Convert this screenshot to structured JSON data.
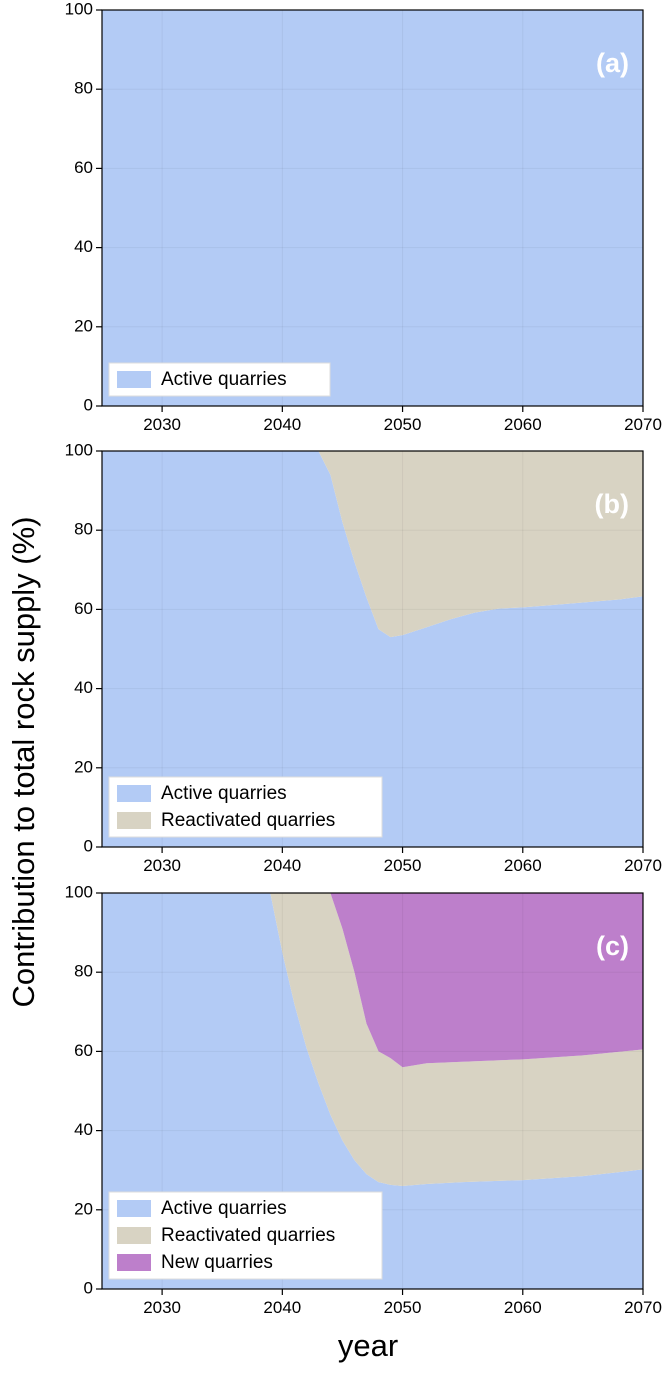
{
  "ylabel": "Contribution to total rock supply (%)",
  "xlabel": "year",
  "colors": {
    "active": "#b3cbf5",
    "reactivated": "#d8d3c3",
    "new": "#bd7fcb"
  },
  "chart_data": [
    {
      "type": "area",
      "panel_label": "(a)",
      "stacked": true,
      "xlim": [
        2025,
        2070
      ],
      "ylim": [
        0,
        100
      ],
      "xticks": [
        2030,
        2040,
        2050,
        2060,
        2070
      ],
      "yticks": [
        0,
        20,
        40,
        60,
        80,
        100
      ],
      "legend_position": "bottom-left",
      "series": [
        {
          "name": "Active quarries",
          "color": "#b3cbf5",
          "x": [
            2025,
            2070
          ],
          "values": [
            100,
            100
          ]
        }
      ]
    },
    {
      "type": "area",
      "panel_label": "(b)",
      "stacked": true,
      "xlim": [
        2025,
        2070
      ],
      "ylim": [
        0,
        100
      ],
      "xticks": [
        2030,
        2040,
        2050,
        2060,
        2070
      ],
      "yticks": [
        0,
        20,
        40,
        60,
        80,
        100
      ],
      "legend_position": "bottom-left",
      "series": [
        {
          "name": "Active quarries",
          "color": "#b3cbf5",
          "x": [
            2025,
            2043,
            2044,
            2045,
            2046,
            2047,
            2048,
            2049,
            2050,
            2052,
            2054,
            2056,
            2058,
            2060,
            2062,
            2064,
            2066,
            2068,
            2070
          ],
          "values": [
            100,
            100,
            94,
            82,
            72,
            63,
            55,
            53,
            53.5,
            55.5,
            57.5,
            59.2,
            60.2,
            60.5,
            61,
            61.5,
            62,
            62.5,
            63.3
          ]
        },
        {
          "name": "Reactivated quarries",
          "color": "#d8d3c3",
          "x": [
            2025,
            2043,
            2044,
            2045,
            2046,
            2047,
            2048,
            2049,
            2050,
            2052,
            2054,
            2056,
            2058,
            2060,
            2062,
            2064,
            2066,
            2068,
            2070
          ],
          "values": [
            0,
            0,
            6,
            18,
            28,
            37,
            45,
            47,
            46.5,
            44.5,
            42.5,
            40.8,
            39.8,
            39.5,
            39,
            38.5,
            38,
            37.5,
            36.7
          ]
        }
      ]
    },
    {
      "type": "area",
      "panel_label": "(c)",
      "stacked": true,
      "xlim": [
        2025,
        2070
      ],
      "ylim": [
        0,
        100
      ],
      "xticks": [
        2030,
        2040,
        2050,
        2060,
        2070
      ],
      "yticks": [
        0,
        20,
        40,
        60,
        80,
        100
      ],
      "legend_position": "bottom-left",
      "series": [
        {
          "name": "Active quarries",
          "color": "#b3cbf5",
          "x": [
            2025,
            2039,
            2040,
            2041,
            2042,
            2043,
            2044,
            2045,
            2046,
            2047,
            2048,
            2049,
            2050,
            2052,
            2055,
            2060,
            2065,
            2070
          ],
          "values": [
            100,
            100,
            85,
            72,
            61,
            52,
            44,
            37.5,
            32.5,
            29,
            27,
            26.3,
            26,
            26.5,
            27,
            27.5,
            28.5,
            30.2
          ]
        },
        {
          "name": "Reactivated quarries",
          "color": "#d8d3c3",
          "x": [
            2025,
            2039,
            2040,
            2041,
            2042,
            2043,
            2044,
            2045,
            2046,
            2047,
            2048,
            2049,
            2050,
            2052,
            2055,
            2060,
            2065,
            2070
          ],
          "values": [
            0,
            0,
            15,
            28,
            39,
            48,
            56,
            53.5,
            47.5,
            38,
            33,
            32,
            30,
            30.5,
            30.4,
            30.5,
            30.5,
            30.3
          ]
        },
        {
          "name": "New quarries",
          "color": "#bd7fcb",
          "x": [
            2025,
            2039,
            2040,
            2041,
            2042,
            2043,
            2044,
            2045,
            2046,
            2047,
            2048,
            2049,
            2050,
            2052,
            2055,
            2060,
            2065,
            2070
          ],
          "values": [
            0,
            0,
            0,
            0,
            0,
            0,
            0,
            9,
            20,
            33,
            40,
            41.7,
            44,
            43,
            42.6,
            42,
            41,
            39.5
          ]
        }
      ]
    }
  ]
}
